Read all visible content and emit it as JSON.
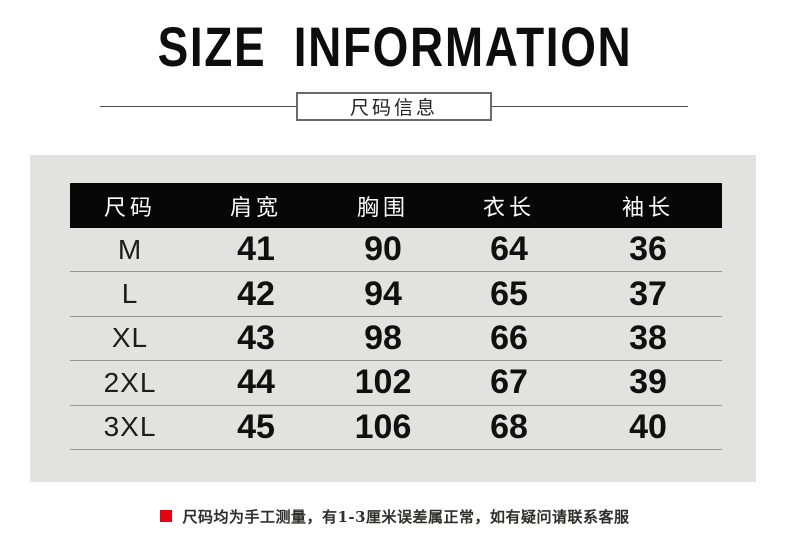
{
  "title": "SIZE INFORMATION",
  "subtitle": "尺码信息",
  "footer": {
    "bullet_icon": "red-square",
    "note": "尺码均为手工测量，有1-3厘米误差属正常，如有疑问请联系客服"
  },
  "colors": {
    "accent_red": "#e60012",
    "header_bg": "#070707",
    "panel_bg": "#e2e2e0",
    "separator": "#979797"
  },
  "chart_data": {
    "type": "table",
    "title": "SIZE INFORMATION",
    "subtitle": "尺码信息",
    "columns": [
      "尺码",
      "肩宽",
      "胸围",
      "衣长",
      "袖长"
    ],
    "rows": [
      [
        "M",
        "41",
        "90",
        "64",
        "36"
      ],
      [
        "L",
        "42",
        "94",
        "65",
        "37"
      ],
      [
        "XL",
        "43",
        "98",
        "66",
        "38"
      ],
      [
        "2XL",
        "44",
        "102",
        "67",
        "39"
      ],
      [
        "3XL",
        "45",
        "106",
        "68",
        "40"
      ]
    ],
    "note": "尺码均为手工测量，有1-3厘米误差属正常，如有疑问请联系客服"
  }
}
